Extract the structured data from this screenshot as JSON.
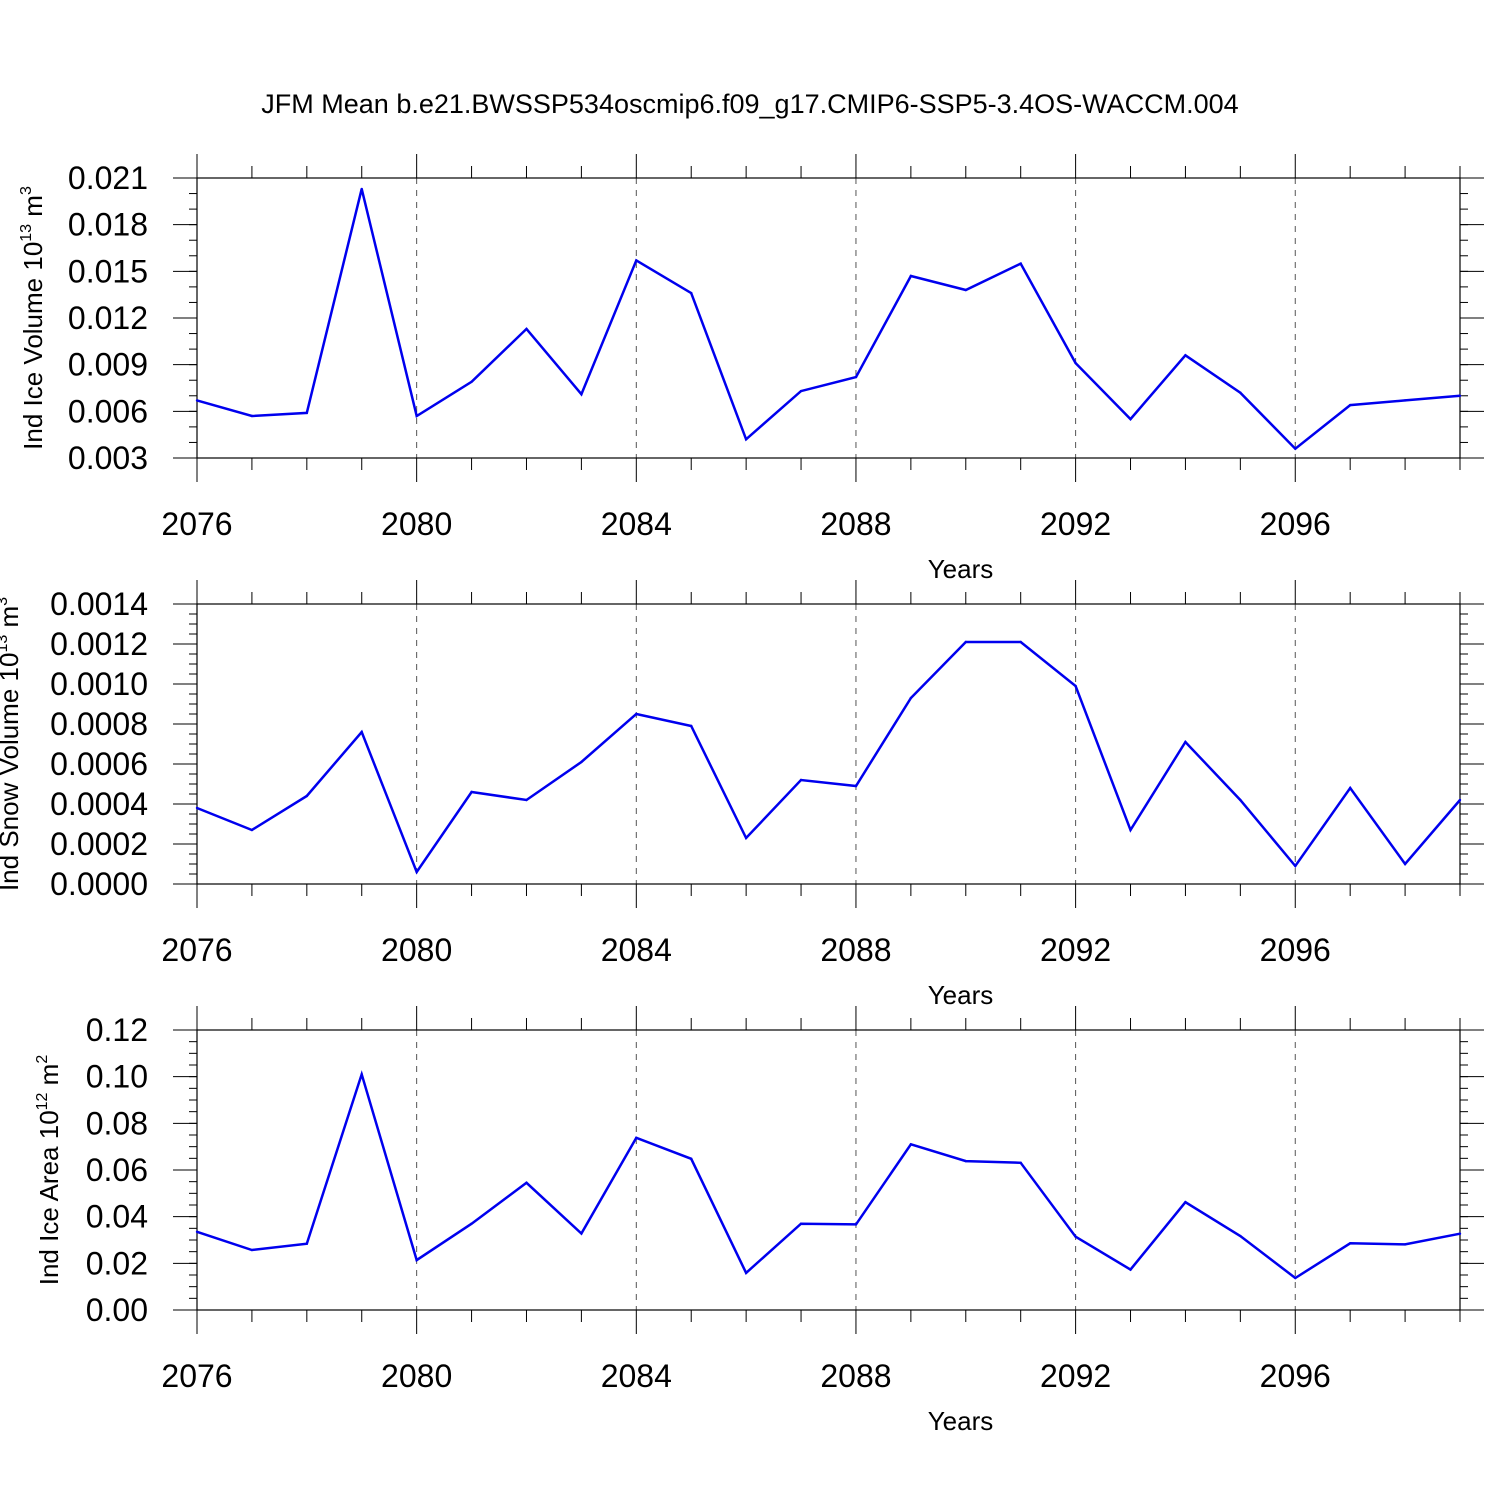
{
  "figure": {
    "title": "JFM Mean b.e21.BWSSP534oscmip6.f09_g17.CMIP6-SSP5-3.4OS-WACCM.004"
  },
  "chart_data": [
    {
      "type": "line",
      "xlabel": "Years",
      "ylabel": {
        "text": "Ind Ice Volume 10",
        "sup": "13",
        "unit": " m",
        "unit_sup": "3"
      },
      "xlim": [
        2076,
        2099
      ],
      "ylim": [
        0.003,
        0.021
      ],
      "xticks": [
        2076,
        2080,
        2084,
        2088,
        2092,
        2096
      ],
      "yticks": [
        "0.003",
        "0.006",
        "0.009",
        "0.012",
        "0.015",
        "0.018",
        "0.021"
      ],
      "y_minor_step": 0.001,
      "grid": "dashed vertical at major x ticks",
      "color": "#0000ee",
      "x": [
        2076,
        2077,
        2078,
        2079,
        2080,
        2081,
        2082,
        2083,
        2084,
        2085,
        2086,
        2087,
        2088,
        2089,
        2090,
        2091,
        2092,
        2093,
        2094,
        2095,
        2096,
        2097,
        2098,
        2099
      ],
      "values": [
        0.0067,
        0.0057,
        0.0059,
        0.0203,
        0.0057,
        0.0079,
        0.0113,
        0.0071,
        0.0157,
        0.0136,
        0.0042,
        0.0073,
        0.0082,
        0.0147,
        0.0138,
        0.0155,
        0.0091,
        0.0055,
        0.0096,
        0.0072,
        0.0036,
        0.0064,
        0.0067,
        0.007
      ]
    },
    {
      "type": "line",
      "xlabel": "Years",
      "ylabel": {
        "text": "Ind Snow Volume 10",
        "sup": "13",
        "unit": " m",
        "unit_sup": "3"
      },
      "xlim": [
        2076,
        2099
      ],
      "ylim": [
        0.0,
        0.0014
      ],
      "xticks": [
        2076,
        2080,
        2084,
        2088,
        2092,
        2096
      ],
      "yticks": [
        "0.0000",
        "0.0002",
        "0.0004",
        "0.0006",
        "0.0008",
        "0.0010",
        "0.0012",
        "0.0014"
      ],
      "y_minor_step": 5e-05,
      "grid": "dashed vertical at major x ticks",
      "color": "#0000ee",
      "x": [
        2076,
        2077,
        2078,
        2079,
        2080,
        2081,
        2082,
        2083,
        2084,
        2085,
        2086,
        2087,
        2088,
        2089,
        2090,
        2091,
        2092,
        2093,
        2094,
        2095,
        2096,
        2097,
        2098,
        2099
      ],
      "values": [
        0.00038,
        0.00027,
        0.00044,
        0.00076,
        6e-05,
        0.00046,
        0.00042,
        0.00061,
        0.00085,
        0.00079,
        0.00023,
        0.00052,
        0.00049,
        0.00093,
        0.00121,
        0.00121,
        0.00099,
        0.00027,
        0.00071,
        0.00042,
        9e-05,
        0.00048,
        0.0001,
        0.00042
      ]
    },
    {
      "type": "line",
      "xlabel": "Years",
      "ylabel": {
        "text": "Ind Ice Area 10",
        "sup": "12",
        "unit": " m",
        "unit_sup": "2"
      },
      "xlim": [
        2076,
        2099
      ],
      "ylim": [
        0.0,
        0.12
      ],
      "xticks": [
        2076,
        2080,
        2084,
        2088,
        2092,
        2096
      ],
      "yticks": [
        "0.00",
        "0.02",
        "0.04",
        "0.06",
        "0.08",
        "0.10",
        "0.12"
      ],
      "y_minor_step": 0.005,
      "grid": "dashed vertical at major x ticks",
      "color": "#0000ee",
      "x": [
        2076,
        2077,
        2078,
        2079,
        2080,
        2081,
        2082,
        2083,
        2084,
        2085,
        2086,
        2087,
        2088,
        2089,
        2090,
        2091,
        2092,
        2093,
        2094,
        2095,
        2096,
        2097,
        2098,
        2099
      ],
      "values": [
        0.0335,
        0.0257,
        0.0284,
        0.101,
        0.0214,
        0.037,
        0.0545,
        0.0328,
        0.0738,
        0.0648,
        0.0159,
        0.037,
        0.0367,
        0.071,
        0.0638,
        0.0631,
        0.0314,
        0.0173,
        0.0462,
        0.0317,
        0.0137,
        0.0286,
        0.0281,
        0.0327
      ]
    }
  ]
}
